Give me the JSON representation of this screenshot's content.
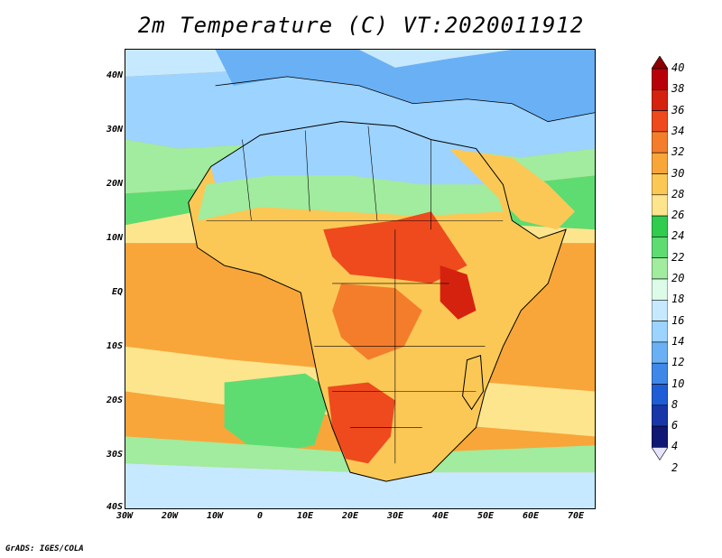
{
  "title": "2m Temperature (C) VT:2020011912",
  "footer": "GrADS: IGES/COLA",
  "map": {
    "lat_ticks": [
      "40N",
      "30N",
      "20N",
      "10N",
      "EQ",
      "10S",
      "20S",
      "30S",
      "40S"
    ],
    "lon_ticks": [
      "30W",
      "20W",
      "10W",
      "0",
      "10E",
      "20E",
      "30E",
      "40E",
      "50E",
      "60E",
      "70E"
    ],
    "lon_range": [
      -30,
      75
    ],
    "lat_range": [
      -40,
      45
    ]
  },
  "colorbar": {
    "labels": [
      "40",
      "38",
      "36",
      "34",
      "32",
      "30",
      "28",
      "26",
      "24",
      "22",
      "20",
      "18",
      "16",
      "14",
      "12",
      "10",
      "8",
      "6",
      "4",
      "2"
    ],
    "colors": [
      "#8c0000",
      "#b8000a",
      "#d5220f",
      "#ee4a1d",
      "#f47d2b",
      "#f8a63a",
      "#fbc856",
      "#fde58e",
      "#2fcc4e",
      "#5edc72",
      "#a1ec9e",
      "#dcfbe8",
      "#c6e9ff",
      "#9dd3ff",
      "#6ab0f4",
      "#3f88e8",
      "#1e5dd6",
      "#1836a8",
      "#101875",
      "#e6e4ff"
    ]
  }
}
